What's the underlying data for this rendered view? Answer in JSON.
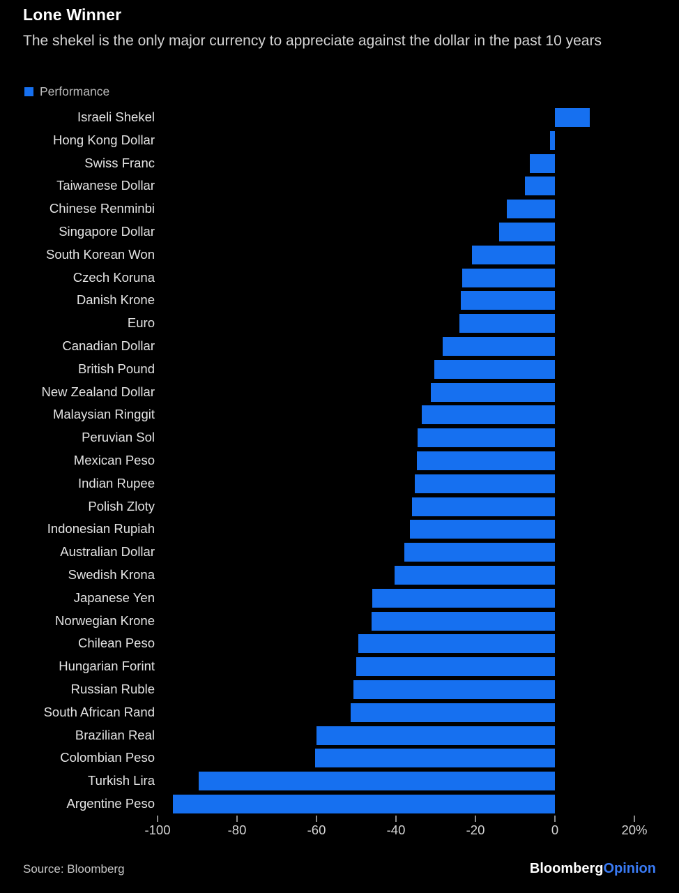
{
  "header": {
    "title": "Lone Winner",
    "subtitle": "The shekel is the only major currency to appreciate against the dollar in the past 10 years"
  },
  "chart_data": {
    "type": "bar",
    "orientation": "horizontal",
    "title": "Lone Winner",
    "subtitle": "The shekel is the only major currency to appreciate against the dollar in the past 10 years",
    "unit": "%",
    "grid": false,
    "legend_position": "top-left",
    "bar_color": "#1670F0",
    "background_color": "#000000",
    "xlim": [
      -100,
      20
    ],
    "x_ticks": [
      -100,
      -80,
      -60,
      -40,
      -20,
      0,
      20
    ],
    "x_tick_labels": [
      "-100",
      "-80",
      "-60",
      "-40",
      "-20",
      "0",
      "20%"
    ],
    "categories": [
      "Israeli Shekel",
      "Hong Kong Dollar",
      "Swiss Franc",
      "Taiwanese Dollar",
      "Chinese Renminbi",
      "Singapore Dollar",
      "South Korean Won",
      "Czech Koruna",
      "Danish Krone",
      "Euro",
      "Canadian Dollar",
      "British Pound",
      "New Zealand Dollar",
      "Malaysian Ringgit",
      "Peruvian Sol",
      "Mexican Peso",
      "Indian Rupee",
      "Polish Zloty",
      "Indonesian Rupiah",
      "Australian Dollar",
      "Swedish Krona",
      "Japanese Yen",
      "Norwegian Krone",
      "Chilean Peso",
      "Hungarian Forint",
      "Russian Ruble",
      "South African Rand",
      "Brazilian Real",
      "Colombian Peso",
      "Turkish Lira",
      "Argentine Peso"
    ],
    "series": [
      {
        "name": "Performance",
        "values": [
          8.8,
          -1.2,
          -6.3,
          -7.5,
          -12.1,
          -14.0,
          -20.9,
          -23.3,
          -23.6,
          -24.0,
          -28.2,
          -30.4,
          -31.2,
          -33.5,
          -34.5,
          -34.7,
          -35.3,
          -36.0,
          -36.5,
          -37.9,
          -40.4,
          -46.0,
          -46.2,
          -49.5,
          -50.0,
          -50.7,
          -51.4,
          -60.0,
          -60.3,
          -89.6,
          -96.1
        ]
      }
    ]
  },
  "footer": {
    "source": "Source: Bloomberg",
    "brand_primary": "Bloomberg",
    "brand_secondary": "Opinion"
  }
}
